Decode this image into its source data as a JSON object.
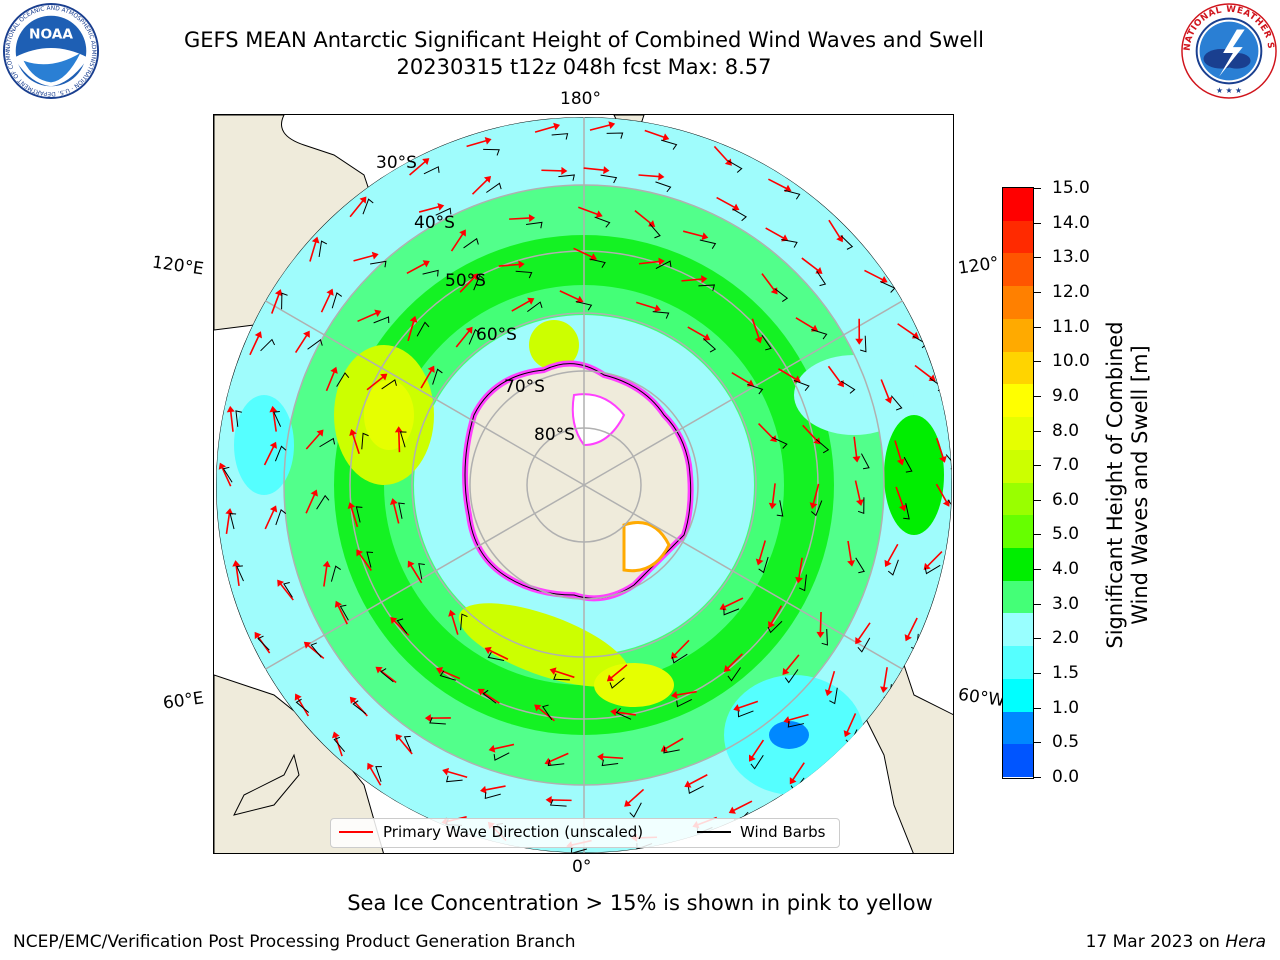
{
  "header": {
    "title_line1": "GEFS MEAN Antarctic Significant Height of Combined Wind Waves and Swell",
    "title_line2": "20230315 t12z 048h fcst   Max: 8.57"
  },
  "logos": {
    "noaa_text": "NOAA",
    "noaa_ring": "NATIONAL OCEANIC AND ATMOSPHERIC ADMINISTRATION · U.S. DEPARTMENT OF COMMERCE",
    "nws_ring": "NATIONAL WEATHER SERVICE"
  },
  "map": {
    "longitude_labels": {
      "top": "180°",
      "bottom": "0°",
      "left_upper": "120°E",
      "left_lower": "60°E",
      "right_upper": "120°",
      "right_lower": "60°W"
    },
    "latitude_labels": [
      "30°S",
      "40°S",
      "50°S",
      "60°S",
      "70°S",
      "80°S"
    ],
    "colors": {
      "land": "#efebdb",
      "ocean_low": "#9ffcfc",
      "sea_ice": "#ff40ff",
      "gridline": "#b0b0b0"
    }
  },
  "colorbar": {
    "label_line1": "Significant Height of Combined",
    "label_line2": "Wind Waves and Swell [m]",
    "ticks": [
      "15.0",
      "14.0",
      "13.0",
      "12.0",
      "11.0",
      "10.0",
      "9.0",
      "8.0",
      "7.0",
      "6.0",
      "5.0",
      "4.0",
      "3.0",
      "2.0",
      "1.5",
      "1.0",
      "0.5",
      "0.0"
    ],
    "colors": [
      "#ff0000",
      "#ff2a00",
      "#ff5500",
      "#ff8000",
      "#ffaa00",
      "#ffd400",
      "#ffff00",
      "#e6ff00",
      "#ccff00",
      "#99ff00",
      "#66ff00",
      "#00ee00",
      "#44ff77",
      "#99ffff",
      "#55ffff",
      "#00ffff",
      "#0088ff",
      "#0055ff",
      "#0000ff"
    ]
  },
  "legend": {
    "wave_label": "Primary Wave Direction (unscaled)",
    "barb_label": "Wind Barbs",
    "wave_color": "#ff0000",
    "barb_color": "#000000"
  },
  "notes": {
    "sea_ice": "Sea Ice Concentration > 15% is shown in pink to yellow"
  },
  "footer": {
    "left": "NCEP/EMC/Verification Post Processing Product Generation Branch",
    "right_prefix": "17 Mar 2023 on ",
    "right_italic": "Hera"
  }
}
